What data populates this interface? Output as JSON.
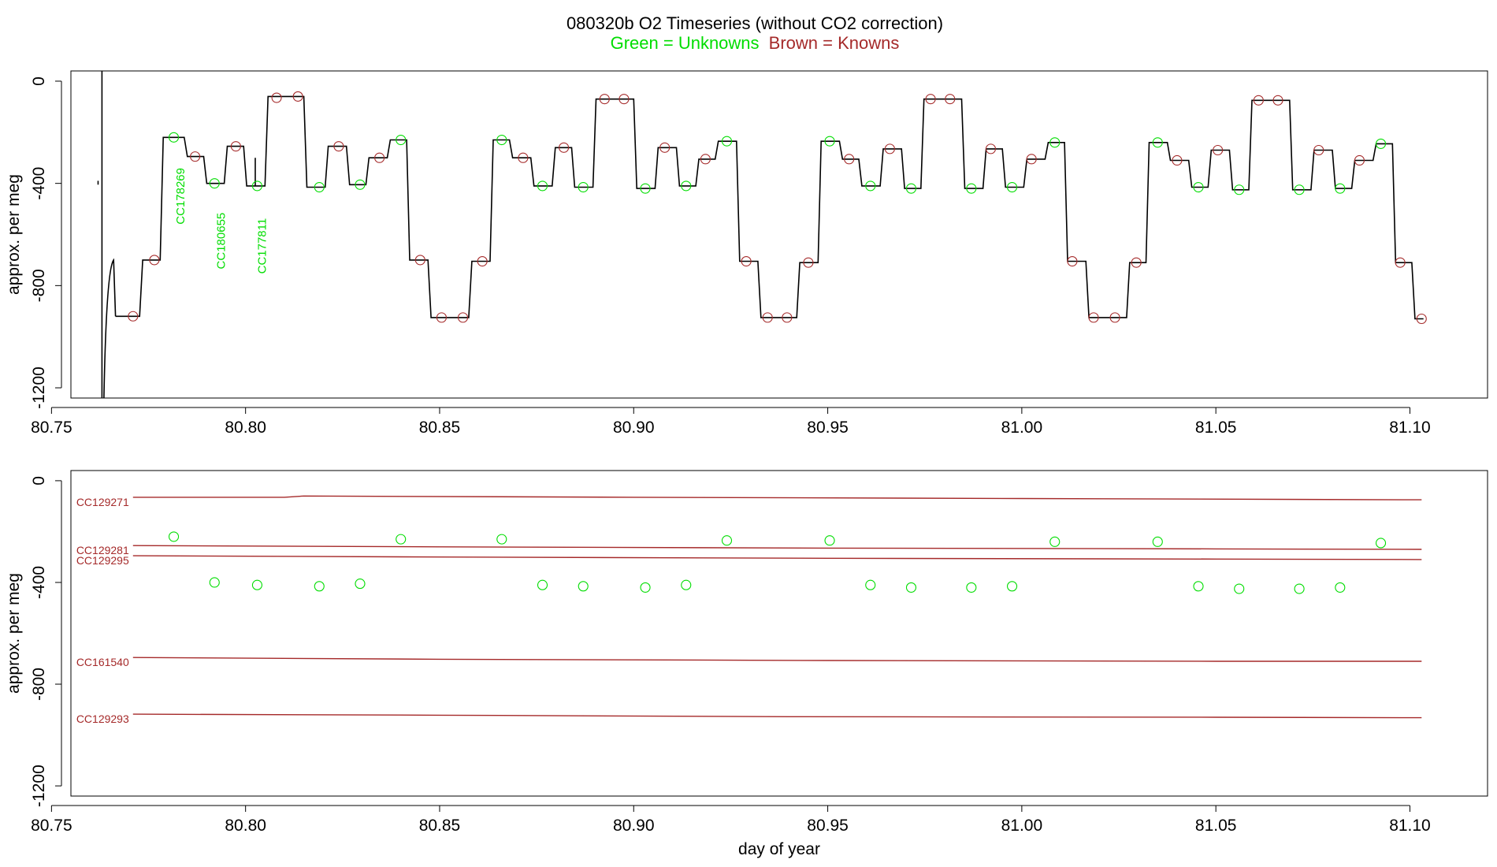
{
  "title": "080320b   O2 Timeseries (without CO2 correction)",
  "subtitle": {
    "unknowns": "Green = Unknowns",
    "knowns": "Brown = Knowns"
  },
  "colors": {
    "unknown": "#00dd00",
    "known": "#a52a2a",
    "trace": "#000000"
  },
  "chart_data": [
    {
      "type": "line",
      "panel": "top",
      "xlabel": "",
      "ylabel": "approx. per meg",
      "xlim": [
        80.755,
        81.12
      ],
      "ylim": [
        -1240,
        40
      ],
      "x_ticks": [
        "80.75",
        "80.80",
        "80.85",
        "80.90",
        "80.95",
        "81.00",
        "81.05",
        "81.10"
      ],
      "y_ticks": [
        "0",
        "-400",
        "-800",
        "-1200"
      ],
      "trace_levels": [
        {
          "x0": 80.7665,
          "x1": 80.7727,
          "y": -920
        },
        {
          "x0": 80.7727,
          "x1": 80.778,
          "y": -700
        },
        {
          "x0": 80.778,
          "x1": 80.7842,
          "y": -220
        },
        {
          "x0": 80.7842,
          "x1": 80.7892,
          "y": -295
        },
        {
          "x0": 80.7892,
          "x1": 80.7945,
          "y": -400
        },
        {
          "x0": 80.7945,
          "x1": 80.7995,
          "y": -255
        },
        {
          "x0": 80.7995,
          "x1": 80.805,
          "y": -410
        },
        {
          "x0": 80.805,
          "x1": 80.815,
          "y": -60
        },
        {
          "x0": 80.815,
          "x1": 80.8205,
          "y": -415
        },
        {
          "x0": 80.8205,
          "x1": 80.826,
          "y": -255
        },
        {
          "x0": 80.826,
          "x1": 80.831,
          "y": -405
        },
        {
          "x0": 80.831,
          "x1": 80.8365,
          "y": -300
        },
        {
          "x0": 80.8365,
          "x1": 80.8415,
          "y": -230
        },
        {
          "x0": 80.8415,
          "x1": 80.847,
          "y": -700
        },
        {
          "x0": 80.847,
          "x1": 80.8575,
          "y": -925
        },
        {
          "x0": 80.8575,
          "x1": 80.863,
          "y": -705
        },
        {
          "x0": 80.863,
          "x1": 80.868,
          "y": -230
        },
        {
          "x0": 80.868,
          "x1": 80.8735,
          "y": -300
        },
        {
          "x0": 80.8735,
          "x1": 80.879,
          "y": -410
        },
        {
          "x0": 80.879,
          "x1": 80.884,
          "y": -260
        },
        {
          "x0": 80.884,
          "x1": 80.8895,
          "y": -415
        },
        {
          "x0": 80.8895,
          "x1": 80.9,
          "y": -70
        },
        {
          "x0": 80.9,
          "x1": 80.9055,
          "y": -420
        },
        {
          "x0": 80.9055,
          "x1": 80.911,
          "y": -260
        },
        {
          "x0": 80.911,
          "x1": 80.916,
          "y": -410
        },
        {
          "x0": 80.916,
          "x1": 80.921,
          "y": -305
        },
        {
          "x0": 80.921,
          "x1": 80.9265,
          "y": -235
        },
        {
          "x0": 80.9265,
          "x1": 80.932,
          "y": -705
        },
        {
          "x0": 80.932,
          "x1": 80.942,
          "y": -925
        },
        {
          "x0": 80.942,
          "x1": 80.9475,
          "y": -710
        },
        {
          "x0": 80.9475,
          "x1": 80.953,
          "y": -235
        },
        {
          "x0": 80.953,
          "x1": 80.958,
          "y": -305
        },
        {
          "x0": 80.958,
          "x1": 80.9635,
          "y": -410
        },
        {
          "x0": 80.9635,
          "x1": 80.969,
          "y": -265
        },
        {
          "x0": 80.969,
          "x1": 80.974,
          "y": -420
        },
        {
          "x0": 80.974,
          "x1": 80.9845,
          "y": -70
        },
        {
          "x0": 80.9845,
          "x1": 80.99,
          "y": -420
        },
        {
          "x0": 80.99,
          "x1": 80.995,
          "y": -265
        },
        {
          "x0": 80.995,
          "x1": 81.0005,
          "y": -415
        },
        {
          "x0": 81.0005,
          "x1": 81.006,
          "y": -305
        },
        {
          "x0": 81.006,
          "x1": 81.011,
          "y": -240
        },
        {
          "x0": 81.011,
          "x1": 81.0165,
          "y": -705
        },
        {
          "x0": 81.0165,
          "x1": 81.027,
          "y": -925
        },
        {
          "x0": 81.027,
          "x1": 81.032,
          "y": -710
        },
        {
          "x0": 81.032,
          "x1": 81.0375,
          "y": -240
        },
        {
          "x0": 81.0375,
          "x1": 81.043,
          "y": -310
        },
        {
          "x0": 81.043,
          "x1": 81.048,
          "y": -415
        },
        {
          "x0": 81.048,
          "x1": 81.0535,
          "y": -270
        },
        {
          "x0": 81.0535,
          "x1": 81.0585,
          "y": -425
        },
        {
          "x0": 81.0585,
          "x1": 81.069,
          "y": -75
        },
        {
          "x0": 81.069,
          "x1": 81.0745,
          "y": -425
        },
        {
          "x0": 81.0745,
          "x1": 81.08,
          "y": -270
        },
        {
          "x0": 81.08,
          "x1": 81.085,
          "y": -420
        },
        {
          "x0": 81.085,
          "x1": 81.0905,
          "y": -310
        },
        {
          "x0": 81.0905,
          "x1": 81.0955,
          "y": -245
        },
        {
          "x0": 81.0955,
          "x1": 81.1005,
          "y": -710
        },
        {
          "x0": 81.1005,
          "x1": 81.1035,
          "y": -930
        }
      ],
      "trace_artifacts": [
        {
          "x": 80.762,
          "y0": -390,
          "y1": -405
        },
        {
          "x": 80.763,
          "y0": 40,
          "y1": -1240
        },
        {
          "x": 80.8025,
          "y0": -300,
          "y1": -410
        }
      ],
      "knowns": [
        {
          "x": 80.771,
          "y": -920
        },
        {
          "x": 80.7765,
          "y": -700
        },
        {
          "x": 80.787,
          "y": -295
        },
        {
          "x": 80.7975,
          "y": -255
        },
        {
          "x": 80.808,
          "y": -65
        },
        {
          "x": 80.8135,
          "y": -60
        },
        {
          "x": 80.824,
          "y": -255
        },
        {
          "x": 80.8345,
          "y": -300
        },
        {
          "x": 80.845,
          "y": -700
        },
        {
          "x": 80.8505,
          "y": -925
        },
        {
          "x": 80.856,
          "y": -925
        },
        {
          "x": 80.861,
          "y": -705
        },
        {
          "x": 80.8715,
          "y": -300
        },
        {
          "x": 80.882,
          "y": -260
        },
        {
          "x": 80.8925,
          "y": -70
        },
        {
          "x": 80.8975,
          "y": -70
        },
        {
          "x": 80.908,
          "y": -260
        },
        {
          "x": 80.9185,
          "y": -305
        },
        {
          "x": 80.929,
          "y": -705
        },
        {
          "x": 80.9345,
          "y": -925
        },
        {
          "x": 80.9395,
          "y": -925
        },
        {
          "x": 80.945,
          "y": -710
        },
        {
          "x": 80.9555,
          "y": -305
        },
        {
          "x": 80.966,
          "y": -265
        },
        {
          "x": 80.9765,
          "y": -70
        },
        {
          "x": 80.9815,
          "y": -70
        },
        {
          "x": 80.992,
          "y": -265
        },
        {
          "x": 81.0025,
          "y": -305
        },
        {
          "x": 81.013,
          "y": -705
        },
        {
          "x": 81.0185,
          "y": -925
        },
        {
          "x": 81.024,
          "y": -925
        },
        {
          "x": 81.0295,
          "y": -710
        },
        {
          "x": 81.04,
          "y": -310
        },
        {
          "x": 81.0505,
          "y": -270
        },
        {
          "x": 81.061,
          "y": -75
        },
        {
          "x": 81.066,
          "y": -75
        },
        {
          "x": 81.0765,
          "y": -270
        },
        {
          "x": 81.087,
          "y": -310
        },
        {
          "x": 81.0975,
          "y": -710
        },
        {
          "x": 81.103,
          "y": -930
        }
      ],
      "unknowns": [
        {
          "x": 80.7815,
          "y": -220
        },
        {
          "x": 80.792,
          "y": -400
        },
        {
          "x": 80.803,
          "y": -410
        },
        {
          "x": 80.819,
          "y": -415
        },
        {
          "x": 80.8295,
          "y": -405
        },
        {
          "x": 80.84,
          "y": -230
        },
        {
          "x": 80.866,
          "y": -230
        },
        {
          "x": 80.8765,
          "y": -410
        },
        {
          "x": 80.887,
          "y": -415
        },
        {
          "x": 80.903,
          "y": -420
        },
        {
          "x": 80.9135,
          "y": -410
        },
        {
          "x": 80.924,
          "y": -235
        },
        {
          "x": 80.9505,
          "y": -235
        },
        {
          "x": 80.961,
          "y": -410
        },
        {
          "x": 80.9715,
          "y": -420
        },
        {
          "x": 80.987,
          "y": -420
        },
        {
          "x": 80.9975,
          "y": -415
        },
        {
          "x": 81.0085,
          "y": -240
        },
        {
          "x": 81.035,
          "y": -240
        },
        {
          "x": 81.0455,
          "y": -415
        },
        {
          "x": 81.056,
          "y": -425
        },
        {
          "x": 81.0715,
          "y": -425
        },
        {
          "x": 81.082,
          "y": -420
        },
        {
          "x": 81.0925,
          "y": -245
        }
      ],
      "annotations": [
        {
          "text": "CC178269",
          "x": 80.783,
          "y": -450
        },
        {
          "text": "CC180655",
          "x": 80.7935,
          "y": -625
        },
        {
          "text": "CC177811",
          "x": 80.804,
          "y": -645
        }
      ]
    },
    {
      "type": "scatter",
      "panel": "bottom",
      "xlabel": "day of year",
      "ylabel": "approx. per meg",
      "xlim": [
        80.755,
        81.12
      ],
      "ylim": [
        -1240,
        40
      ],
      "x_ticks": [
        "80.75",
        "80.80",
        "80.85",
        "80.90",
        "80.95",
        "81.00",
        "81.05",
        "81.10"
      ],
      "y_ticks": [
        "0",
        "-400",
        "-800",
        "-1200"
      ],
      "known_lines": [
        {
          "name": "CC129271",
          "x": [
            80.771,
            80.81,
            80.815,
            80.9,
            81.0,
            81.103
          ],
          "y": [
            -65,
            -65,
            -60,
            -65,
            -70,
            -75
          ]
        },
        {
          "name": "CC129281",
          "x": [
            80.771,
            80.85,
            80.95,
            81.05,
            81.103
          ],
          "y": [
            -255,
            -260,
            -265,
            -268,
            -270
          ]
        },
        {
          "name": "CC129295",
          "x": [
            80.771,
            80.85,
            80.95,
            81.05,
            81.103
          ],
          "y": [
            -295,
            -300,
            -305,
            -308,
            -310
          ]
        },
        {
          "name": "CC161540",
          "x": [
            80.771,
            80.85,
            80.95,
            81.05,
            81.103
          ],
          "y": [
            -695,
            -702,
            -707,
            -710,
            -710
          ]
        },
        {
          "name": "CC129293",
          "x": [
            80.771,
            80.85,
            80.94,
            81.05,
            81.103
          ],
          "y": [
            -918,
            -922,
            -928,
            -930,
            -932
          ]
        }
      ],
      "unknowns": [
        {
          "x": 80.7815,
          "y": -220
        },
        {
          "x": 80.792,
          "y": -400
        },
        {
          "x": 80.803,
          "y": -410
        },
        {
          "x": 80.819,
          "y": -415
        },
        {
          "x": 80.8295,
          "y": -405
        },
        {
          "x": 80.84,
          "y": -230
        },
        {
          "x": 80.866,
          "y": -230
        },
        {
          "x": 80.8765,
          "y": -410
        },
        {
          "x": 80.887,
          "y": -415
        },
        {
          "x": 80.903,
          "y": -420
        },
        {
          "x": 80.9135,
          "y": -410
        },
        {
          "x": 80.924,
          "y": -235
        },
        {
          "x": 80.9505,
          "y": -235
        },
        {
          "x": 80.961,
          "y": -410
        },
        {
          "x": 80.9715,
          "y": -420
        },
        {
          "x": 80.987,
          "y": -420
        },
        {
          "x": 80.9975,
          "y": -415
        },
        {
          "x": 81.0085,
          "y": -240
        },
        {
          "x": 81.035,
          "y": -240
        },
        {
          "x": 81.0455,
          "y": -415
        },
        {
          "x": 81.056,
          "y": -425
        },
        {
          "x": 81.0715,
          "y": -425
        },
        {
          "x": 81.082,
          "y": -420
        },
        {
          "x": 81.0925,
          "y": -245
        }
      ]
    }
  ]
}
